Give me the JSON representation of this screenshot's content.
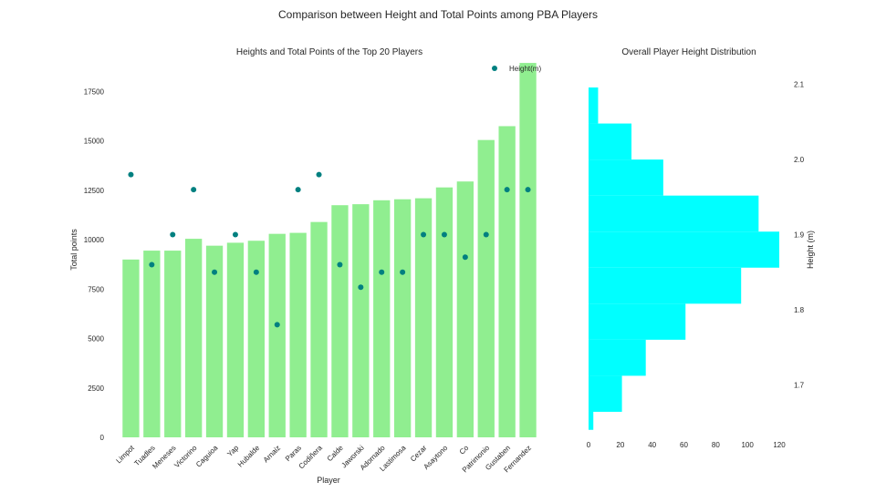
{
  "suptitle": "Comparison between Height and Total Points among PBA Players",
  "chart_data": [
    {
      "type": "bar",
      "title": "Heights and Total Points of the Top 20 Players",
      "xlabel": "Player",
      "ylabel": "Total points",
      "ylim": [
        0,
        19000
      ],
      "yticks": [
        0,
        2500,
        5000,
        7500,
        10000,
        12500,
        15000,
        17500
      ],
      "categories": [
        "Limpot",
        "Tuadles",
        "Meneses",
        "Victorino",
        "Caguioa",
        "Yap",
        "Hubalde",
        "Arnaiz",
        "Paras",
        "Codiñera",
        "Calde",
        "Jaworski",
        "Adornado",
        "Lastimosa",
        "Cezar",
        "Asaytono",
        "Co",
        "Patrimonio",
        "Gustaben",
        "Fernandez"
      ],
      "values": [
        9000,
        9450,
        9450,
        10050,
        9700,
        9850,
        9950,
        10300,
        10350,
        10900,
        11750,
        11800,
        12000,
        12050,
        12100,
        12650,
        12950,
        15050,
        15750,
        18950
      ],
      "bar_color": "#90ee90",
      "series": [
        {
          "name": "Height(m)",
          "type": "scatter",
          "color": "#008080",
          "values": [
            1.98,
            1.86,
            1.9,
            1.96,
            1.85,
            1.9,
            1.85,
            1.78,
            1.96,
            1.98,
            1.86,
            1.83,
            1.85,
            1.85,
            1.9,
            1.9,
            1.87,
            1.9,
            1.96,
            1.96
          ],
          "ylim": [
            1.63,
            2.13
          ]
        }
      ],
      "legend_position": "top-right",
      "grid": false
    },
    {
      "type": "histogram",
      "orientation": "horizontal",
      "title": "Overall Player Height Distribution",
      "xlabel": "",
      "ylabel": "Height (m)",
      "color": "#00ffff",
      "bins": [
        {
          "from": 1.64,
          "to": 1.664,
          "count": 3
        },
        {
          "from": 1.664,
          "to": 1.712,
          "count": 21
        },
        {
          "from": 1.712,
          "to": 1.76,
          "count": 36
        },
        {
          "from": 1.76,
          "to": 1.808,
          "count": 61
        },
        {
          "from": 1.808,
          "to": 1.856,
          "count": 96
        },
        {
          "from": 1.856,
          "to": 1.904,
          "count": 120
        },
        {
          "from": 1.904,
          "to": 1.952,
          "count": 107
        },
        {
          "from": 1.952,
          "to": 2.0,
          "count": 47
        },
        {
          "from": 2.0,
          "to": 2.048,
          "count": 27
        },
        {
          "from": 2.048,
          "to": 2.096,
          "count": 6
        }
      ],
      "xlim": [
        0,
        125
      ],
      "xticks": [
        0,
        20,
        40,
        60,
        80,
        100,
        120
      ],
      "ylim": [
        1.63,
        2.13
      ],
      "yticks": [
        "1.7",
        "1.8",
        "1.9",
        "2.0",
        "2.1"
      ],
      "grid": false
    }
  ]
}
